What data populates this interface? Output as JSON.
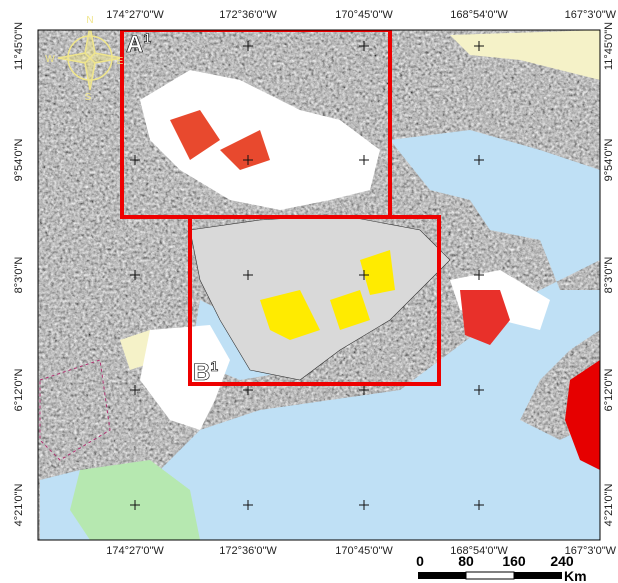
{
  "map": {
    "top_labels": [
      "174°27'0\"W",
      "172°36'0\"W",
      "170°45'0\"W",
      "168°54'0\"W",
      "167°3'0\"W"
    ],
    "bottom_labels": [
      "174°27'0\"W",
      "172°36'0\"W",
      "170°45'0\"W",
      "168°54'0\"W",
      "167°3'0\"W"
    ],
    "left_labels": [
      "11°45'0\"N",
      "9°54'0\"N",
      "8°3'0\"N",
      "6°12'0\"N",
      "4°21'0\"N"
    ],
    "right_labels": [
      "11°45'0\"N",
      "9°54'0\"N",
      "8°3'0\"N",
      "6°12'0\"N",
      "4°21'0\"N"
    ],
    "boxes": [
      {
        "label": "A",
        "superscript": "1"
      },
      {
        "label": "B",
        "superscript": "1"
      }
    ],
    "compass": {
      "n": "N",
      "s": "S",
      "e": "E",
      "w": "W"
    },
    "scale": {
      "ticks": [
        0,
        80,
        160,
        240
      ],
      "unit": "Km"
    }
  }
}
